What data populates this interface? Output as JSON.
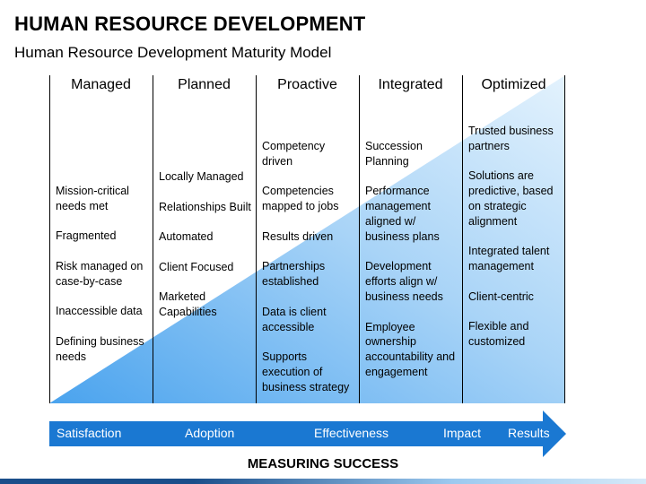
{
  "header": {
    "title": "HUMAN RESOURCE DEVELOPMENT",
    "subtitle": "Human Resource Development Maturity Model"
  },
  "columns": [
    {
      "heading": "Managed",
      "items": [
        "Mission-critical needs met",
        "Fragmented",
        "Risk managed on case-by-case",
        "Inaccessible data",
        "Defining business needs"
      ]
    },
    {
      "heading": "Planned",
      "items": [
        "Locally Managed",
        "Relationships Built",
        "Automated",
        "Client Focused",
        "Marketed Capabilities"
      ]
    },
    {
      "heading": "Proactive",
      "items": [
        "Competency driven",
        "Competencies mapped to jobs",
        "Results driven",
        "Partnerships established",
        "Data is client accessible",
        "Supports execution of business strategy"
      ]
    },
    {
      "heading": "Integrated",
      "items": [
        "Succession Planning",
        "Performance management aligned w/ business plans",
        "Development efforts align w/ business needs",
        "Employee ownership accountability and engagement"
      ]
    },
    {
      "heading": "Optimized",
      "items": [
        "Trusted business partners",
        "Solutions are predictive, based on strategic alignment",
        "Integrated talent management",
        "Client-centric",
        "Flexible and customized"
      ]
    }
  ],
  "arrow": {
    "stages": [
      "Satisfaction",
      "Adoption",
      "Effectiveness",
      "Impact",
      "Results"
    ]
  },
  "footer": {
    "label": "MEASURING SUCCESS"
  },
  "colors": {
    "arrow": "#1a78d2",
    "triangle_light": "#dcefff",
    "triangle_dark": "#6fb8f3"
  }
}
